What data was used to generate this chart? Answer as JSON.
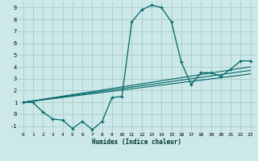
{
  "title": "",
  "xlabel": "Humidex (Indice chaleur)",
  "bg_color": "#cce8e8",
  "grid_color": "#aacccc",
  "line_color": "#006666",
  "xlim": [
    -0.5,
    23.5
  ],
  "ylim": [
    -1.5,
    9.5
  ],
  "xticks": [
    0,
    1,
    2,
    3,
    4,
    5,
    6,
    7,
    8,
    9,
    10,
    11,
    12,
    13,
    14,
    15,
    16,
    17,
    18,
    19,
    20,
    21,
    22,
    23
  ],
  "yticks": [
    -1,
    0,
    1,
    2,
    3,
    4,
    5,
    6,
    7,
    8,
    9
  ],
  "main_curve_x": [
    0,
    1,
    2,
    3,
    4,
    5,
    6,
    7,
    8,
    9,
    10,
    11,
    12,
    13,
    14,
    15,
    16,
    17,
    18,
    19,
    20,
    21,
    22,
    23
  ],
  "main_curve_y": [
    1.0,
    1.0,
    0.2,
    -0.4,
    -0.5,
    -1.2,
    -0.6,
    -1.3,
    -0.6,
    1.4,
    1.5,
    7.8,
    8.8,
    9.2,
    9.0,
    7.8,
    4.4,
    2.5,
    3.5,
    3.5,
    3.2,
    3.8,
    4.5,
    4.5
  ],
  "line1_x": [
    0,
    23
  ],
  "line1_y": [
    1.0,
    3.4
  ],
  "line2_x": [
    0,
    23
  ],
  "line2_y": [
    1.0,
    3.7
  ],
  "line3_x": [
    0,
    23
  ],
  "line3_y": [
    1.0,
    4.0
  ]
}
